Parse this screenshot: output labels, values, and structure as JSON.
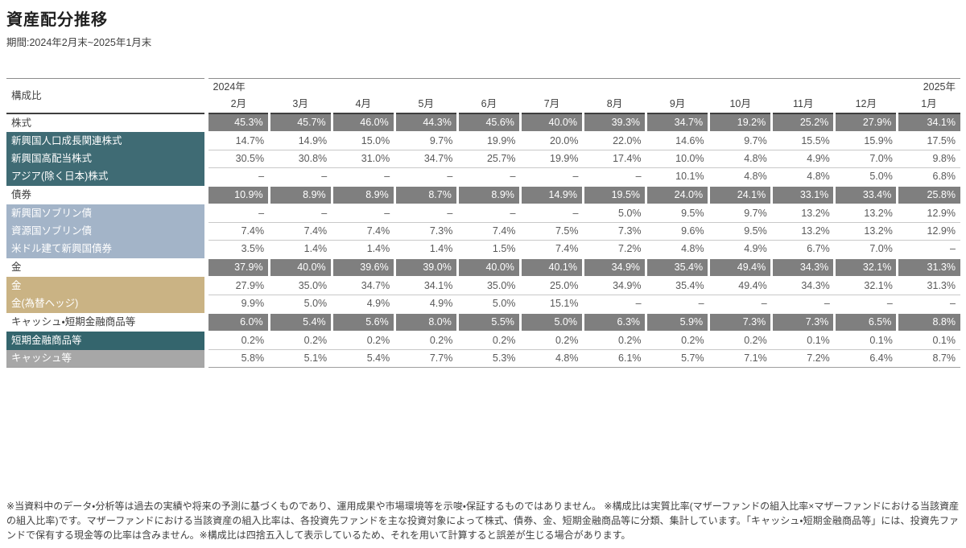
{
  "header": {
    "title": "資産配分推移",
    "period": "期間:2024年2月末~2025年1月末"
  },
  "table": {
    "corner_label": "構成比",
    "year_start": "2024年",
    "year_end": "2025年",
    "months": [
      "2月",
      "3月",
      "4月",
      "5月",
      "6月",
      "7月",
      "8月",
      "9月",
      "10月",
      "11月",
      "12月",
      "1月"
    ],
    "rows": [
      {
        "label": "株式",
        "type": "category",
        "group": "",
        "values": [
          "45.3%",
          "45.7%",
          "46.0%",
          "44.3%",
          "45.6%",
          "40.0%",
          "39.3%",
          "34.7%",
          "19.2%",
          "25.2%",
          "27.9%",
          "34.1%"
        ]
      },
      {
        "label": "新興国人口成長関連株式",
        "type": "sub",
        "group": "equity",
        "values": [
          "14.7%",
          "14.9%",
          "15.0%",
          "9.7%",
          "19.9%",
          "20.0%",
          "22.0%",
          "14.6%",
          "9.7%",
          "15.5%",
          "15.9%",
          "17.5%"
        ]
      },
      {
        "label": "新興国高配当株式",
        "type": "sub",
        "group": "equity",
        "values": [
          "30.5%",
          "30.8%",
          "31.0%",
          "34.7%",
          "25.7%",
          "19.9%",
          "17.4%",
          "10.0%",
          "4.8%",
          "4.9%",
          "7.0%",
          "9.8%"
        ]
      },
      {
        "label": "アジア(除く日本)株式",
        "type": "sub",
        "group": "equity",
        "values": [
          "–",
          "–",
          "–",
          "–",
          "–",
          "–",
          "–",
          "10.1%",
          "4.8%",
          "4.8%",
          "5.0%",
          "6.8%"
        ]
      },
      {
        "label": "債券",
        "type": "category",
        "group": "",
        "values": [
          "10.9%",
          "8.9%",
          "8.9%",
          "8.7%",
          "8.9%",
          "14.9%",
          "19.5%",
          "24.0%",
          "24.1%",
          "33.1%",
          "33.4%",
          "25.8%"
        ]
      },
      {
        "label": "新興国ソブリン債",
        "type": "sub",
        "group": "bond",
        "values": [
          "–",
          "–",
          "–",
          "–",
          "–",
          "–",
          "5.0%",
          "9.5%",
          "9.7%",
          "13.2%",
          "13.2%",
          "12.9%"
        ]
      },
      {
        "label": "資源国ソブリン債",
        "type": "sub",
        "group": "bond",
        "values": [
          "7.4%",
          "7.4%",
          "7.4%",
          "7.3%",
          "7.4%",
          "7.5%",
          "7.3%",
          "9.6%",
          "9.5%",
          "13.2%",
          "13.2%",
          "12.9%"
        ]
      },
      {
        "label": "米ドル建て新興国債券",
        "type": "sub",
        "group": "bond",
        "values": [
          "3.5%",
          "1.4%",
          "1.4%",
          "1.4%",
          "1.5%",
          "7.4%",
          "7.2%",
          "4.8%",
          "4.9%",
          "6.7%",
          "7.0%",
          "–"
        ]
      },
      {
        "label": "金",
        "type": "category",
        "group": "",
        "values": [
          "37.9%",
          "40.0%",
          "39.6%",
          "39.0%",
          "40.0%",
          "40.1%",
          "34.9%",
          "35.4%",
          "49.4%",
          "34.3%",
          "32.1%",
          "31.3%"
        ]
      },
      {
        "label": "金",
        "type": "sub",
        "group": "gold",
        "values": [
          "27.9%",
          "35.0%",
          "34.7%",
          "34.1%",
          "35.0%",
          "25.0%",
          "34.9%",
          "35.4%",
          "49.4%",
          "34.3%",
          "32.1%",
          "31.3%"
        ]
      },
      {
        "label": "金(為替ヘッジ)",
        "type": "sub",
        "group": "gold",
        "values": [
          "9.9%",
          "5.0%",
          "4.9%",
          "4.9%",
          "5.0%",
          "15.1%",
          "–",
          "–",
          "–",
          "–",
          "–",
          "–"
        ]
      },
      {
        "label": "キャッシュ・短期金融商品等",
        "type": "category",
        "group": "",
        "values": [
          "6.0%",
          "5.4%",
          "5.6%",
          "8.0%",
          "5.5%",
          "5.0%",
          "6.3%",
          "5.9%",
          "7.3%",
          "7.3%",
          "6.5%",
          "8.8%"
        ]
      },
      {
        "label": "短期金融商品等",
        "type": "sub",
        "group": "mmf",
        "values": [
          "0.2%",
          "0.2%",
          "0.2%",
          "0.2%",
          "0.2%",
          "0.2%",
          "0.2%",
          "0.2%",
          "0.2%",
          "0.1%",
          "0.1%",
          "0.1%"
        ]
      },
      {
        "label": "キャッシュ等",
        "type": "sub",
        "group": "cash",
        "values": [
          "5.8%",
          "5.1%",
          "5.4%",
          "7.7%",
          "5.3%",
          "4.8%",
          "6.1%",
          "5.7%",
          "7.1%",
          "7.2%",
          "6.4%",
          "8.7%"
        ]
      }
    ]
  },
  "colors": {
    "sub_equity": "#3f6b74",
    "sub_bond": "#a3b4c8",
    "sub_gold": "#cab384",
    "sub_mmf": "#34656d",
    "sub_cash": "#a7a7a7",
    "category_band": "#7f7f7f"
  },
  "footnote": "※当資料中のデータ・分析等は過去の実績や将来の予測に基づくものであり、運用成果や市場環境等を示唆・保証するものではありません。 ※構成比は実質比率(マザーファンドの組入比率×マザーファンドにおける当該資産の組入比率)です。マザーファンドにおける当該資産の組入比率は、各投資先ファンドを主な投資対象によって株式、債券、金、短期金融商品等に分類、集計しています。「キャッシュ・短期金融商品等」には、投資先ファンドで保有する現金等の比率は含みません。※構成比は四捨五入して表示しているため、それを用いて計算すると誤差が生じる場合があります。"
}
